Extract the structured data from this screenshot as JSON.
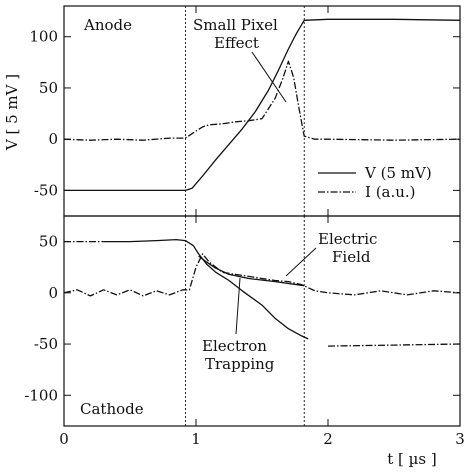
{
  "chart_data": [
    {
      "type": "line",
      "panel": "top",
      "corner_label": "Anode",
      "ylabel": "V [ 5 mV ]",
      "xlim": [
        0,
        3
      ],
      "ylim": [
        -75,
        130
      ],
      "yticks": [
        -50,
        0,
        50,
        100
      ],
      "ytick_labels": [
        "-50",
        "0",
        "50",
        "100"
      ],
      "vlines": [
        0.92,
        1.82
      ],
      "legend": {
        "position": "right",
        "entries": [
          {
            "label": "V (5 mV)",
            "style": "solid"
          },
          {
            "label": "I (a.u.)",
            "style": "dashdot"
          }
        ]
      },
      "annotations": [
        {
          "text": [
            "Small Pixel",
            "Effect"
          ],
          "x": 1.18,
          "y": 112,
          "arrow_to": [
            1.55,
            35
          ]
        }
      ],
      "series": [
        {
          "style": "solid",
          "x": [
            0,
            0.92,
            0.97,
            1.05,
            1.15,
            1.25,
            1.35,
            1.45,
            1.55,
            1.62,
            1.7,
            1.76,
            1.82,
            2.0,
            2.5,
            3.0
          ],
          "values": [
            -50,
            -50,
            -48,
            -36,
            -20,
            -5,
            10,
            27,
            48,
            66,
            88,
            103,
            116,
            117,
            117,
            116
          ]
        },
        {
          "style": "dashdot",
          "x": [
            0,
            0.2,
            0.4,
            0.6,
            0.8,
            0.92,
            1.0,
            1.05,
            1.1,
            1.2,
            1.3,
            1.4,
            1.5,
            1.6,
            1.66,
            1.7,
            1.74,
            1.78,
            1.82,
            1.9,
            2.0,
            2.5,
            3.0
          ],
          "values": [
            0,
            -1,
            0,
            -1,
            1,
            1,
            8,
            12,
            14,
            15,
            17,
            18,
            20,
            40,
            60,
            76,
            60,
            30,
            3,
            0,
            0,
            -1,
            0
          ]
        }
      ]
    },
    {
      "type": "line",
      "panel": "bottom",
      "corner_label": "Cathode",
      "xlabel": "t [ µs ]",
      "xlim": [
        0,
        3
      ],
      "ylim": [
        -130,
        75
      ],
      "xticks": [
        0,
        1,
        2,
        3
      ],
      "xtick_labels": [
        "0",
        "1",
        "2",
        "3"
      ],
      "yticks": [
        -100,
        -50,
        0,
        50
      ],
      "ytick_labels": [
        "-100",
        "-50",
        "0",
        "50"
      ],
      "vlines": [
        0.92,
        1.82
      ],
      "annotations": [
        {
          "text": [
            "Electric",
            "Field"
          ],
          "x": 1.92,
          "y": 38,
          "arrow_to": [
            1.6,
            15
          ]
        },
        {
          "text": [
            "Electron",
            "Trapping"
          ],
          "x": 1.05,
          "y": -70,
          "arrow_to": [
            1.2,
            22
          ]
        }
      ],
      "series": [
        {
          "style": "solid",
          "x": [
            0.3,
            0.5,
            0.7,
            0.85,
            0.92,
            0.98,
            1.02,
            1.08,
            1.15,
            1.25,
            1.35,
            1.5,
            1.6,
            1.7,
            1.8,
            1.85
          ],
          "values": [
            50,
            50,
            51,
            52,
            51,
            46,
            38,
            28,
            20,
            12,
            2,
            -12,
            -25,
            -35,
            -42,
            -45
          ]
        },
        {
          "style": "solid",
          "x": [
            1.02,
            1.08,
            1.15,
            1.25,
            1.4,
            1.6,
            1.82
          ],
          "values": [
            36,
            30,
            24,
            18,
            14,
            11,
            7
          ]
        },
        {
          "style": "dashdot",
          "x": [
            0,
            0.1,
            0.2,
            0.3,
            0.4,
            0.5,
            0.6,
            0.7,
            0.8,
            0.9,
            0.95,
            1.0,
            1.05,
            1.1,
            1.2,
            1.3,
            1.4,
            1.5,
            1.6,
            1.7,
            1.8,
            1.9,
            2.0,
            2.2,
            2.4,
            2.6,
            2.8,
            3.0
          ],
          "values": [
            0,
            3,
            -3,
            3,
            -2,
            3,
            -3,
            2,
            -2,
            3,
            3,
            25,
            38,
            30,
            20,
            18,
            16,
            14,
            12,
            11,
            8,
            2,
            0,
            -2,
            2,
            -2,
            2,
            0
          ]
        },
        {
          "style": "dashdot",
          "x": [
            0.0,
            0.3,
            2.0,
            2.5,
            3.0
          ],
          "values": [
            50,
            50,
            -52,
            -51,
            -50
          ],
          "segments": [
            [
              0,
              1
            ],
            [
              2,
              4
            ]
          ]
        }
      ]
    }
  ]
}
